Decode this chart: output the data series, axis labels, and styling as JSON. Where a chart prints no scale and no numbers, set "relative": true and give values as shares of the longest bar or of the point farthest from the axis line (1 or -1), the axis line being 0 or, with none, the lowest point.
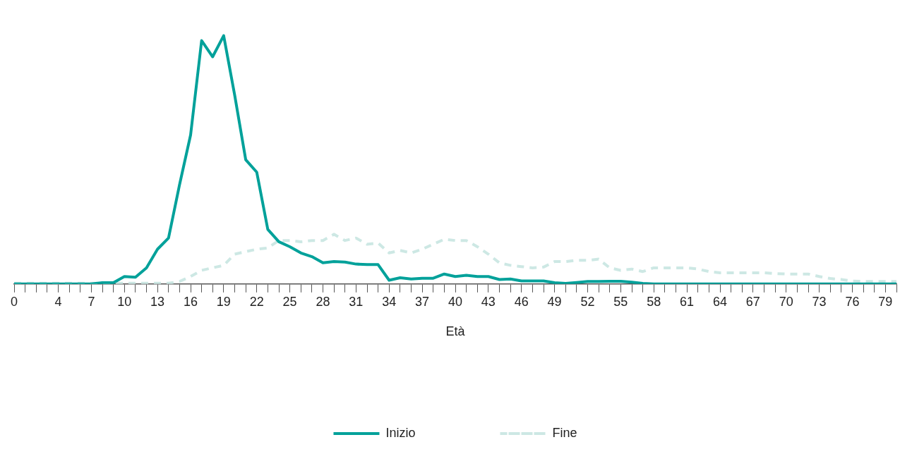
{
  "chart_data": {
    "type": "line",
    "relative": true,
    "xlabel": "Età",
    "legend": "bottom",
    "grid": false,
    "marker": "none",
    "categories": [
      "0",
      null,
      null,
      null,
      "4",
      null,
      null,
      "7",
      null,
      null,
      "10",
      null,
      null,
      "13",
      null,
      null,
      "16",
      null,
      null,
      "19",
      null,
      null,
      "22",
      null,
      null,
      "25",
      null,
      null,
      "28",
      null,
      null,
      "31",
      null,
      null,
      "34",
      null,
      null,
      "37",
      null,
      null,
      "40",
      null,
      null,
      "43",
      null,
      null,
      "46",
      null,
      null,
      "49",
      null,
      null,
      "52",
      null,
      null,
      "55",
      null,
      null,
      "58",
      null,
      null,
      "61",
      null,
      null,
      "64",
      null,
      null,
      "67",
      null,
      null,
      "70",
      null,
      null,
      "73",
      null,
      null,
      "76",
      null,
      null,
      "79",
      null
    ],
    "series": [
      {
        "name": "Inizio",
        "color": "#00a19a",
        "line_style": "solid",
        "values": [
          0,
          0,
          0,
          0,
          0,
          0,
          0,
          0,
          0.005,
          0.005,
          0.03,
          0.027,
          0.065,
          0.14,
          0.185,
          0.4,
          0.6,
          0.98,
          0.915,
          1,
          0.76,
          0.5,
          0.45,
          0.22,
          0.17,
          0.15,
          0.125,
          0.11,
          0.085,
          0.09,
          0.088,
          0.08,
          0.078,
          0.078,
          0.015,
          0.025,
          0.02,
          0.023,
          0.023,
          0.04,
          0.03,
          0.035,
          0.03,
          0.03,
          0.018,
          0.02,
          0.012,
          0.012,
          0.012,
          0.005,
          0.002,
          0.006,
          0.01,
          0.01,
          0.011,
          0.011,
          0.007,
          0.002,
          0,
          0,
          0,
          0,
          0,
          0,
          0,
          0,
          0,
          0,
          0,
          0,
          0,
          0,
          0,
          0,
          0,
          0,
          0,
          0,
          0,
          0,
          0
        ]
      },
      {
        "name": "Fine",
        "color": "#cde8e4",
        "line_style": "dashed",
        "values": [
          0.003,
          0.003,
          0.003,
          0.003,
          0.003,
          0.003,
          0.003,
          0.003,
          0.003,
          0.003,
          0.003,
          0.003,
          0.003,
          0.003,
          0.003,
          0.01,
          0.03,
          0.055,
          0.065,
          0.075,
          0.12,
          0.13,
          0.14,
          0.145,
          0.175,
          0.175,
          0.17,
          0.175,
          0.175,
          0.2,
          0.175,
          0.185,
          0.16,
          0.165,
          0.125,
          0.135,
          0.125,
          0.14,
          0.16,
          0.18,
          0.175,
          0.175,
          0.15,
          0.12,
          0.085,
          0.075,
          0.07,
          0.065,
          0.068,
          0.09,
          0.09,
          0.095,
          0.095,
          0.1,
          0.065,
          0.055,
          0.06,
          0.05,
          0.065,
          0.065,
          0.065,
          0.065,
          0.06,
          0.05,
          0.045,
          0.045,
          0.045,
          0.045,
          0.045,
          0.042,
          0.04,
          0.04,
          0.04,
          0.03,
          0.022,
          0.018,
          0.012,
          0.01,
          0.01,
          0.01,
          0.01
        ]
      }
    ]
  }
}
